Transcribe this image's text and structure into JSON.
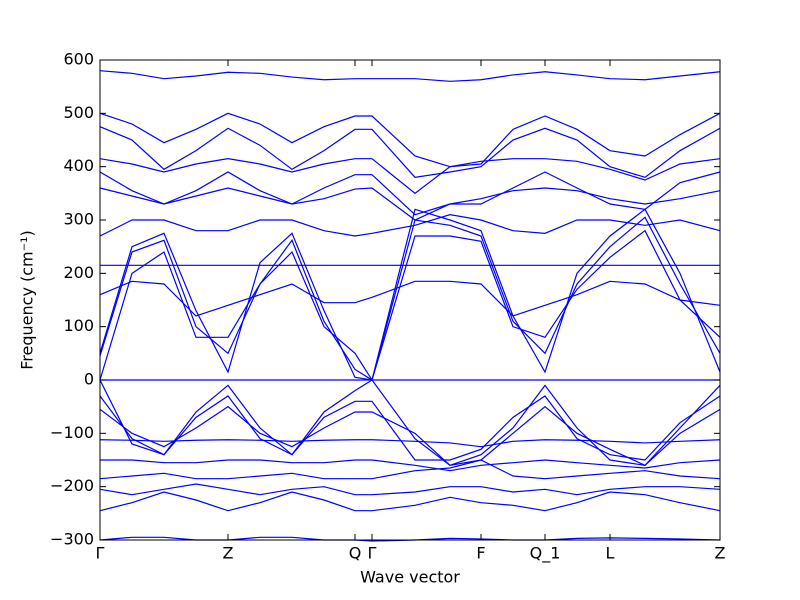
{
  "chart_data": {
    "type": "line",
    "xlabel": "Wave vector",
    "ylabel": "Frequency (cm⁻¹)",
    "color": "#0000ff",
    "xlim": [
      0,
      620
    ],
    "ylim": [
      -300,
      600
    ],
    "xticks": [
      {
        "value": 0,
        "label": "Γ"
      },
      {
        "value": 128,
        "label": "Z"
      },
      {
        "value": 255,
        "label": "Q"
      },
      {
        "value": 272,
        "label": "Γ"
      },
      {
        "value": 381,
        "label": "F"
      },
      {
        "value": 445,
        "label": "Q_1"
      },
      {
        "value": 510,
        "label": "L"
      },
      {
        "value": 620,
        "label": "Z"
      }
    ],
    "yticks": [
      {
        "value": -300,
        "label": "−300"
      },
      {
        "value": -200,
        "label": "−200"
      },
      {
        "value": -100,
        "label": "−100"
      },
      0,
      100,
      200,
      300,
      400,
      500,
      600
    ],
    "x": [
      0,
      32,
      64,
      96,
      128,
      160,
      192,
      224,
      255,
      272,
      315,
      350,
      381,
      413,
      445,
      477,
      510,
      545,
      580,
      620
    ],
    "series": [
      {
        "values": [
          580,
          575,
          565,
          570,
          577,
          575,
          568,
          563,
          565,
          565,
          565,
          560,
          563,
          572,
          578,
          572,
          565,
          563,
          570,
          578
        ]
      },
      {
        "values": [
          500,
          480,
          445,
          470,
          500,
          480,
          445,
          475,
          495,
          495,
          420,
          400,
          405,
          470,
          495,
          470,
          430,
          420,
          460,
          500
        ]
      },
      {
        "values": [
          475,
          450,
          395,
          430,
          472,
          440,
          395,
          430,
          470,
          470,
          380,
          390,
          400,
          450,
          472,
          450,
          400,
          380,
          430,
          472
        ]
      },
      {
        "values": [
          415,
          405,
          390,
          405,
          415,
          405,
          390,
          405,
          415,
          415,
          350,
          400,
          410,
          415,
          415,
          410,
          395,
          375,
          405,
          415
        ]
      },
      {
        "values": [
          390,
          355,
          330,
          355,
          390,
          355,
          330,
          360,
          385,
          385,
          310,
          330,
          330,
          360,
          390,
          360,
          330,
          320,
          370,
          390
        ]
      },
      {
        "values": [
          360,
          345,
          330,
          345,
          360,
          345,
          330,
          340,
          358,
          360,
          300,
          330,
          340,
          355,
          360,
          355,
          340,
          330,
          340,
          355
        ]
      },
      {
        "values": [
          270,
          300,
          300,
          280,
          280,
          300,
          300,
          280,
          270,
          275,
          290,
          310,
          300,
          280,
          275,
          300,
          300,
          290,
          300,
          280
        ]
      },
      {
        "values": [
          50,
          250,
          275,
          130,
          15,
          220,
          275,
          130,
          5,
          0,
          320,
          300,
          280,
          120,
          15,
          200,
          270,
          320,
          200,
          15
        ]
      },
      {
        "values": [
          45,
          240,
          262,
          100,
          50,
          180,
          262,
          110,
          20,
          0,
          300,
          290,
          270,
          110,
          50,
          180,
          250,
          305,
          180,
          50
        ]
      },
      {
        "values": [
          0,
          200,
          240,
          80,
          80,
          180,
          240,
          100,
          50,
          0,
          270,
          270,
          260,
          100,
          80,
          170,
          230,
          280,
          150,
          80
        ]
      },
      {
        "values": [
          215,
          215,
          215,
          215,
          215,
          215,
          215,
          215,
          215,
          215,
          215,
          215,
          215,
          215,
          215,
          215,
          215,
          215,
          215,
          215
        ]
      },
      {
        "values": [
          160,
          185,
          180,
          120,
          140,
          160,
          180,
          145,
          145,
          155,
          185,
          185,
          180,
          120,
          140,
          160,
          185,
          180,
          150,
          140
        ]
      },
      {
        "values": [
          0,
          0,
          0,
          0,
          0,
          0,
          0,
          0,
          0,
          0,
          0,
          0,
          0,
          0,
          0,
          0,
          0,
          0,
          0,
          0
        ]
      },
      {
        "values": [
          0,
          -120,
          -140,
          -60,
          -10,
          -90,
          -140,
          -60,
          -20,
          0,
          -110,
          -160,
          -140,
          -90,
          -10,
          -90,
          -150,
          -160,
          -90,
          -10
        ]
      },
      {
        "values": [
          -30,
          -110,
          -140,
          -70,
          -30,
          -110,
          -140,
          -70,
          -40,
          -40,
          -150,
          -150,
          -130,
          -70,
          -30,
          -110,
          -140,
          -150,
          -80,
          -30
        ]
      },
      {
        "values": [
          -55,
          -100,
          -125,
          -90,
          -50,
          -100,
          -125,
          -90,
          -60,
          -60,
          -100,
          -160,
          -150,
          -100,
          -50,
          -100,
          -130,
          -160,
          -100,
          -55
        ]
      },
      {
        "values": [
          -112,
          -113,
          -115,
          -113,
          -112,
          -113,
          -115,
          -113,
          -112,
          -112,
          -115,
          -118,
          -125,
          -115,
          -112,
          -113,
          -115,
          -118,
          -115,
          -112
        ]
      },
      {
        "values": [
          -150,
          -150,
          -155,
          -155,
          -150,
          -150,
          -155,
          -155,
          -150,
          -150,
          -160,
          -170,
          -160,
          -155,
          -150,
          -155,
          -160,
          -165,
          -155,
          -150
        ]
      },
      {
        "values": [
          -185,
          -180,
          -175,
          -185,
          -185,
          -180,
          -175,
          -185,
          -185,
          -185,
          -170,
          -165,
          -150,
          -180,
          -185,
          -180,
          -175,
          -170,
          -180,
          -185
        ]
      },
      {
        "values": [
          -205,
          -215,
          -205,
          -195,
          -205,
          -215,
          -205,
          -200,
          -215,
          -215,
          -210,
          -200,
          -200,
          -210,
          -205,
          -215,
          -205,
          -200,
          -200,
          -205
        ]
      },
      {
        "values": [
          -245,
          -230,
          -210,
          -225,
          -245,
          -230,
          -210,
          -225,
          -245,
          -245,
          -235,
          -220,
          -230,
          -235,
          -245,
          -230,
          -210,
          -215,
          -230,
          -245
        ]
      },
      {
        "values": [
          -300,
          -295,
          -295,
          -300,
          -300,
          -295,
          -295,
          -300,
          -300,
          -302,
          -300,
          -297,
          -298,
          -300,
          -300,
          -297,
          -296,
          -297,
          -298,
          -300
        ]
      }
    ]
  }
}
